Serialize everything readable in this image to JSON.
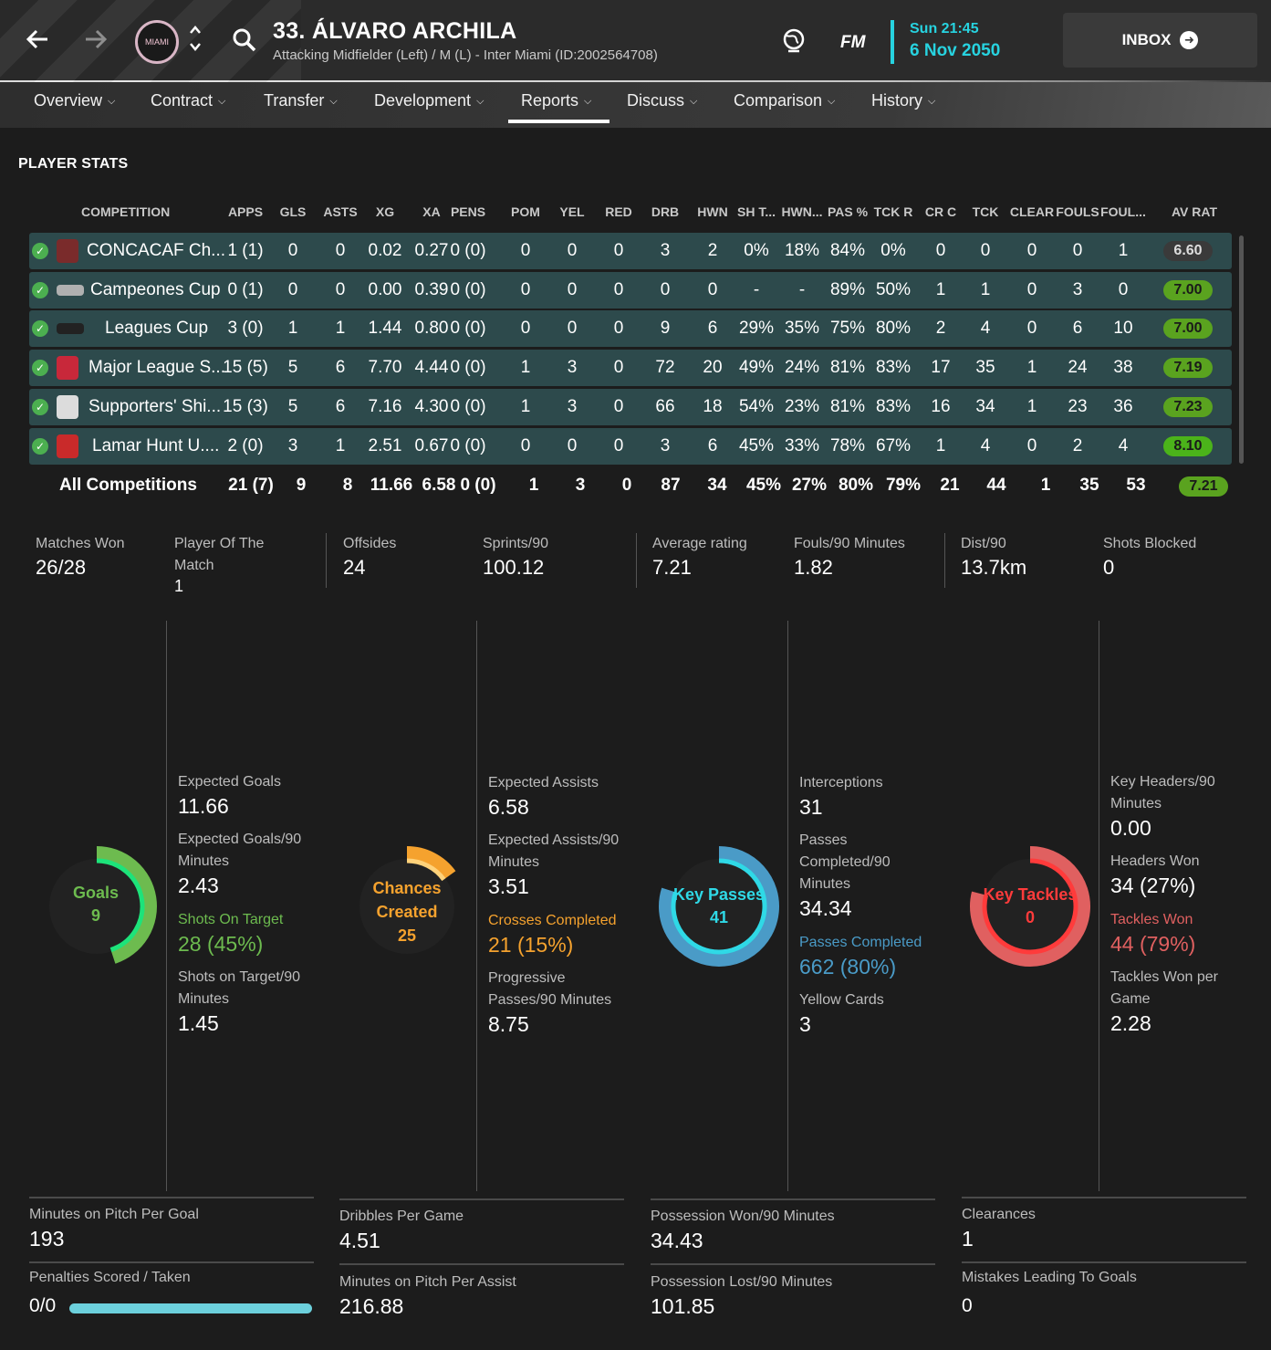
{
  "header": {
    "player_name": "33. ÁLVARO ARCHILA",
    "player_subtitle": "Attacking Midfielder (Left) / M (L) - Inter Miami (ID:2002564708)",
    "fm_label": "FM",
    "date_time": "Sun 21:45",
    "date_day": "6 Nov 2050",
    "inbox_label": "INBOX",
    "club_crest_text": "MIAMI"
  },
  "tabs": [
    {
      "label": "Overview"
    },
    {
      "label": "Contract"
    },
    {
      "label": "Transfer"
    },
    {
      "label": "Development"
    },
    {
      "label": "Reports",
      "active": true
    },
    {
      "label": "Discuss"
    },
    {
      "label": "Comparison"
    },
    {
      "label": "History"
    }
  ],
  "section_title": "PLAYER STATS",
  "columns": [
    "COMPETITION",
    "APPS",
    "GLS",
    "ASTS",
    "XG",
    "XA",
    "PENS",
    "POM",
    "YEL",
    "RED",
    "DRB",
    "HWN",
    "SH T...",
    "HWN...",
    "PAS %",
    "TCK R",
    "CR C",
    "TCK",
    "CLEAR",
    "FOULS",
    "FOUL...",
    "AV RAT"
  ],
  "rows": [
    {
      "name": "CONCACAF Ch...",
      "cells": [
        "1 (1)",
        "0",
        "0",
        "0.02",
        "0.27",
        "0 (0)",
        "0",
        "0",
        "0",
        "3",
        "2",
        "0%",
        "18%",
        "84%",
        "0%",
        "0",
        "0",
        "0",
        "0",
        "1"
      ],
      "rating": "6.60",
      "rating_color": "#3a3a3a",
      "icon_color": "#7a2b2b"
    },
    {
      "name": "Campeones Cup",
      "cells": [
        "0 (1)",
        "0",
        "0",
        "0.00",
        "0.39",
        "0 (0)",
        "0",
        "0",
        "0",
        "0",
        "0",
        "-",
        "-",
        "89%",
        "50%",
        "1",
        "1",
        "0",
        "3",
        "0"
      ],
      "rating": "7.00",
      "rating_color": "#5aa31f",
      "icon_color": "#b0b0b0"
    },
    {
      "name": "Leagues Cup",
      "cells": [
        "3 (0)",
        "1",
        "1",
        "1.44",
        "0.80",
        "0 (0)",
        "0",
        "0",
        "0",
        "9",
        "6",
        "29%",
        "35%",
        "75%",
        "80%",
        "2",
        "4",
        "0",
        "6",
        "10"
      ],
      "rating": "7.00",
      "rating_color": "#5aa31f",
      "icon_color": "#222222"
    },
    {
      "name": "Major League S...",
      "cells": [
        "15 (5)",
        "5",
        "6",
        "7.70",
        "4.44",
        "0 (0)",
        "1",
        "3",
        "0",
        "72",
        "20",
        "49%",
        "24%",
        "81%",
        "83%",
        "17",
        "35",
        "1",
        "24",
        "38"
      ],
      "rating": "7.19",
      "rating_color": "#5aa31f",
      "icon_color": "#c8283a"
    },
    {
      "name": "Supporters' Shi...",
      "cells": [
        "15 (3)",
        "5",
        "6",
        "7.16",
        "4.30",
        "0 (0)",
        "1",
        "3",
        "0",
        "66",
        "18",
        "54%",
        "23%",
        "81%",
        "83%",
        "16",
        "34",
        "1",
        "23",
        "36"
      ],
      "rating": "7.23",
      "rating_color": "#5aa31f",
      "icon_color": "#dcdcdc"
    },
    {
      "name": "Lamar Hunt U....",
      "cells": [
        "2 (0)",
        "3",
        "1",
        "2.51",
        "0.67",
        "0 (0)",
        "0",
        "0",
        "0",
        "3",
        "6",
        "45%",
        "33%",
        "78%",
        "67%",
        "1",
        "4",
        "0",
        "2",
        "4"
      ],
      "rating": "8.10",
      "rating_color": "#4bb31a",
      "icon_color": "#c92a2a"
    }
  ],
  "totals": {
    "name": "All Competitions",
    "cells": [
      "21 (7)",
      "9",
      "8",
      "11.66",
      "6.58",
      "0 (0)",
      "1",
      "3",
      "0",
      "87",
      "34",
      "45%",
      "27%",
      "80%",
      "79%",
      "21",
      "44",
      "1",
      "35",
      "53"
    ],
    "rating": "7.21"
  },
  "summary": [
    {
      "label": "Matches Won",
      "value": "26/28"
    },
    {
      "label": "Player Of The Match",
      "value": "1"
    },
    {
      "label": "Offsides",
      "value": "24"
    },
    {
      "label": "Sprints/90",
      "value": "100.12"
    },
    {
      "label": "Average rating",
      "value": "7.21"
    },
    {
      "label": "Fouls/90 Minutes",
      "value": "1.82"
    },
    {
      "label": "Dist/90",
      "value": "13.7km"
    },
    {
      "label": "Shots Blocked",
      "value": "0"
    }
  ],
  "panels": {
    "goals": {
      "ring_label": "Goals",
      "ring_value": "9",
      "color": "#6dbb4f",
      "highlight": "#1de37a",
      "fraction": 0.45
    },
    "chances": {
      "ring_label_1": "Chances",
      "ring_label_2": "Created",
      "ring_value": "25",
      "color": "#f5a22e",
      "highlight": "#ffd27a",
      "fraction": 0.15
    },
    "keypasses": {
      "ring_label": "Key Passes",
      "ring_value": "41",
      "color": "#4a9bc7",
      "highlight": "#2fd9e6",
      "fraction": 0.8
    },
    "keytackles": {
      "ring_label": "Key Tackles",
      "ring_value": "0",
      "color": "#e06060",
      "highlight": "#ff3b3b",
      "fraction": 0.79
    },
    "col1": [
      {
        "label": "Expected Goals",
        "value": "11.66"
      },
      {
        "label": "Expected Goals/90 Minutes",
        "value": "2.43"
      },
      {
        "label": "Shots On Target",
        "value": "28 (45%)",
        "accent": "green"
      },
      {
        "label": "Shots on Target/90 Minutes",
        "value": "1.45"
      }
    ],
    "col2": [
      {
        "label": "Expected Assists",
        "value": "6.58"
      },
      {
        "label": "Expected Assists/90 Minutes",
        "value": "3.51"
      },
      {
        "label": "Crosses Completed",
        "value": "21 (15%)",
        "accent": "orange"
      },
      {
        "label": "Progressive Passes/90 Minutes",
        "value": "8.75"
      }
    ],
    "col3": [
      {
        "label": "Interceptions",
        "value": "31"
      },
      {
        "label": "Passes Completed/90 Minutes",
        "value": "34.34"
      },
      {
        "label": "Passes Completed",
        "value": "662 (80%)",
        "accent": "blue"
      },
      {
        "label": "Yellow Cards",
        "value": "3"
      }
    ],
    "col4": [
      {
        "label": "Key Headers/90 Minutes",
        "value": "0.00"
      },
      {
        "label": "Headers Won",
        "value": "34 (27%)"
      },
      {
        "label": "Tackles Won",
        "value": "44 (79%)",
        "accent": "red"
      },
      {
        "label": "Tackles Won per Game",
        "value": "2.28"
      }
    ]
  },
  "bottom": [
    {
      "label": "Minutes on Pitch Per Goal",
      "value": "193"
    },
    {
      "label": "Penalties Scored / Taken",
      "value": "0/0"
    },
    {
      "label": "Dribbles Per Game",
      "value": "4.51"
    },
    {
      "label": "Minutes on Pitch Per Assist",
      "value": "216.88"
    },
    {
      "label": "Possession Won/90 Minutes",
      "value": "34.43"
    },
    {
      "label": "Possession Lost/90 Minutes",
      "value": "101.85"
    },
    {
      "label": "Clearances",
      "value": "1"
    },
    {
      "label": "Mistakes Leading To Goals",
      "value": "0"
    }
  ]
}
